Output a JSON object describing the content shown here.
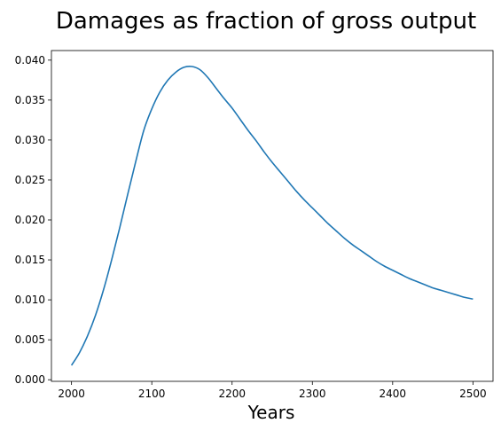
{
  "chart_data": {
    "type": "line",
    "title": "Damages as fraction of gross output",
    "xlabel": "Years",
    "ylabel": "",
    "xlim": [
      1975,
      2525
    ],
    "ylim": [
      -0.0002,
      0.0412
    ],
    "x_ticks": [
      2000,
      2100,
      2200,
      2300,
      2400,
      2500
    ],
    "x_tick_labels": [
      "2000",
      "2100",
      "2200",
      "2300",
      "2400",
      "2500"
    ],
    "y_ticks": [
      0.0,
      0.005,
      0.01,
      0.015,
      0.02,
      0.025,
      0.03,
      0.035,
      0.04
    ],
    "y_tick_labels": [
      "0.000",
      "0.005",
      "0.010",
      "0.015",
      "0.020",
      "0.025",
      "0.030",
      "0.035",
      "0.040"
    ],
    "grid": false,
    "line_color": "#1f77b4",
    "series": [
      {
        "x": [
          2000,
          2010,
          2020,
          2030,
          2040,
          2050,
          2060,
          2070,
          2080,
          2090,
          2100,
          2110,
          2120,
          2130,
          2140,
          2150,
          2160,
          2170,
          2180,
          2190,
          2200,
          2210,
          2220,
          2230,
          2240,
          2250,
          2260,
          2270,
          2280,
          2290,
          2300,
          2310,
          2320,
          2330,
          2340,
          2350,
          2360,
          2370,
          2380,
          2390,
          2400,
          2410,
          2420,
          2430,
          2440,
          2450,
          2460,
          2470,
          2480,
          2490,
          2500
        ],
        "values": [
          0.0018,
          0.0034,
          0.0055,
          0.0081,
          0.0113,
          0.015,
          0.019,
          0.0232,
          0.0273,
          0.0312,
          0.0339,
          0.036,
          0.0375,
          0.0385,
          0.0391,
          0.0392,
          0.0388,
          0.0378,
          0.0365,
          0.0352,
          0.034,
          0.0326,
          0.0312,
          0.0299,
          0.0285,
          0.0272,
          0.026,
          0.0248,
          0.0236,
          0.0225,
          0.0215,
          0.0205,
          0.0195,
          0.0186,
          0.0177,
          0.0169,
          0.0162,
          0.0155,
          0.0148,
          0.0142,
          0.0137,
          0.0132,
          0.0127,
          0.0123,
          0.0119,
          0.0115,
          0.0112,
          0.0109,
          0.0106,
          0.0103,
          0.0101
        ]
      }
    ]
  }
}
